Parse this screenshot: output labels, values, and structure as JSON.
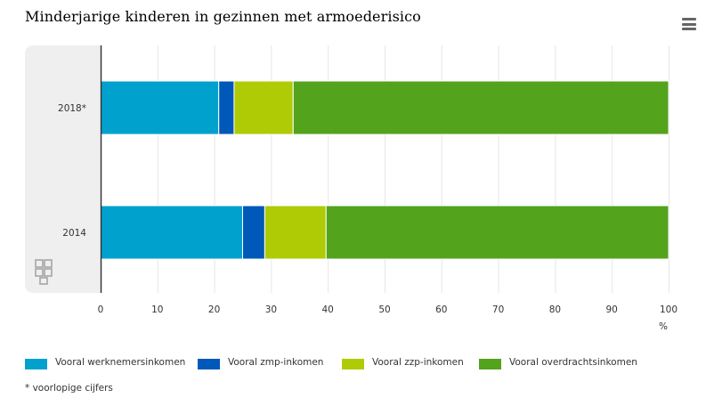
{
  "header": {
    "title": "Minderjarige kinderen in gezinnen met armoederisico"
  },
  "footnote": "* voorlopige cijfers",
  "chart_data": {
    "type": "bar",
    "orientation": "horizontal",
    "stacked": true,
    "title": "Minderjarige kinderen in gezinnen met armoederisico",
    "xlabel": "%",
    "xlim": [
      0,
      100
    ],
    "xticks": [
      0,
      10,
      20,
      30,
      40,
      50,
      60,
      70,
      80,
      90,
      100
    ],
    "grid": true,
    "legend_position": "bottom",
    "categories": [
      "2018*",
      "2014"
    ],
    "series": [
      {
        "name": "Vooral werknemersinkomen",
        "color": "#00a1cd",
        "values": [
          20.8,
          25.0
        ]
      },
      {
        "name": "Vooral zmp-inkomen",
        "color": "#0058b8",
        "values": [
          2.7,
          3.9
        ]
      },
      {
        "name": "Vooral zzp-inkomen",
        "color": "#afcb05",
        "values": [
          10.4,
          10.8
        ]
      },
      {
        "name": "Vooral overdrachtsinkomen",
        "color": "#53a31d",
        "values": [
          66.1,
          60.3
        ]
      }
    ]
  }
}
